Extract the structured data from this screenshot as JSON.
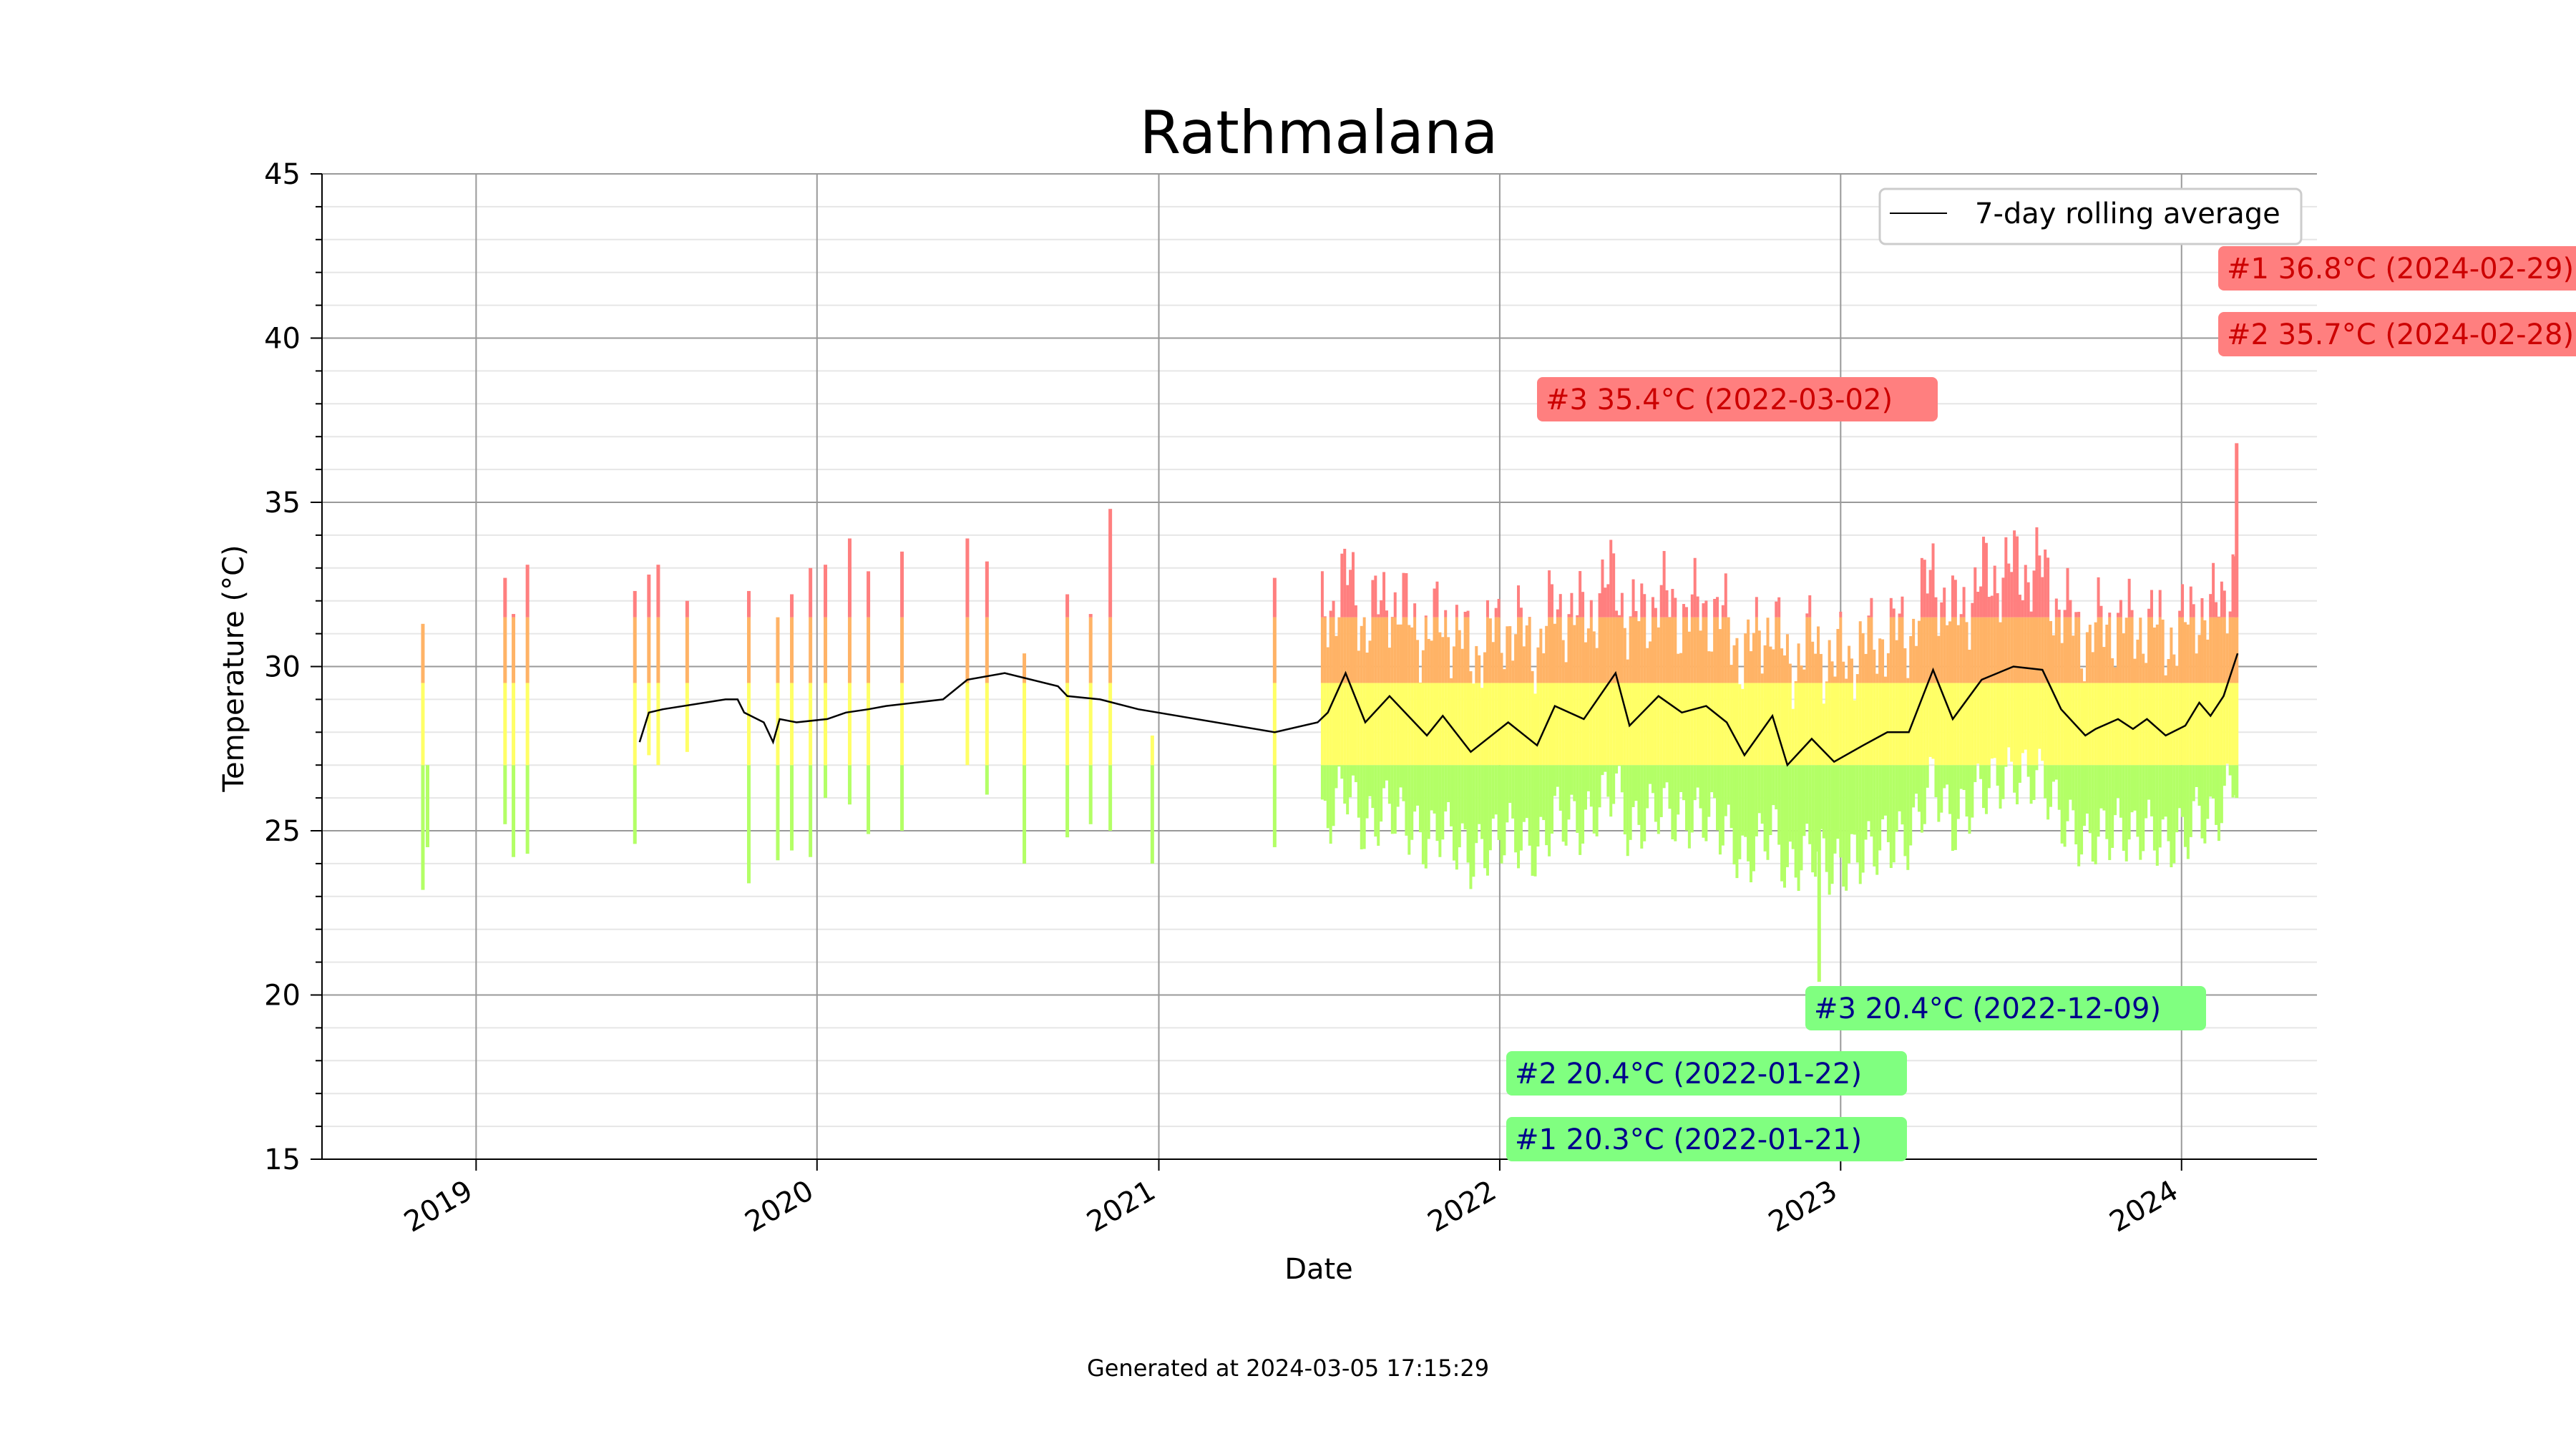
{
  "chart_data": {
    "type": "line",
    "title": "Rathmalana",
    "xlabel": "Date",
    "ylabel": "Temperature (°C)",
    "ylim": [
      15,
      45
    ],
    "xlim": [
      "2018-07-20",
      "2024-05-25"
    ],
    "y_ticks": [
      "15",
      "20",
      "25",
      "30",
      "35",
      "40",
      "45"
    ],
    "x_ticks": [
      {
        "date": "2019-01-01",
        "label": "2019"
      },
      {
        "date": "2020-01-01",
        "label": "2020"
      },
      {
        "date": "2021-01-01",
        "label": "2021"
      },
      {
        "date": "2022-01-01",
        "label": "2022"
      },
      {
        "date": "2023-01-01",
        "label": "2023"
      },
      {
        "date": "2024-01-01",
        "label": "2024"
      }
    ],
    "grid": true,
    "legend": {
      "placement": "top-right",
      "entries": [
        "7-day rolling average"
      ]
    },
    "series": [
      {
        "name": "7-day rolling average",
        "color": "#000000",
        "points": [
          [
            "2019-06-25",
            27.7
          ],
          [
            "2019-07-05",
            28.6
          ],
          [
            "2019-07-20",
            28.7
          ],
          [
            "2019-09-25",
            29.0
          ],
          [
            "2019-10-08",
            29.0
          ],
          [
            "2019-10-15",
            28.6
          ],
          [
            "2019-11-05",
            28.3
          ],
          [
            "2019-11-15",
            27.7
          ],
          [
            "2019-11-22",
            28.4
          ],
          [
            "2019-12-10",
            28.3
          ],
          [
            "2020-01-12",
            28.4
          ],
          [
            "2020-02-01",
            28.6
          ],
          [
            "2020-02-25",
            28.7
          ],
          [
            "2020-03-15",
            28.8
          ],
          [
            "2020-05-15",
            29.0
          ],
          [
            "2020-06-10",
            29.6
          ],
          [
            "2020-07-20",
            29.8
          ],
          [
            "2020-09-15",
            29.4
          ],
          [
            "2020-09-25",
            29.1
          ],
          [
            "2020-10-30",
            29.0
          ],
          [
            "2020-12-10",
            28.7
          ],
          [
            "2021-05-05",
            28.0
          ],
          [
            "2021-06-20",
            28.3
          ],
          [
            "2021-07-01",
            28.6
          ],
          [
            "2021-07-20",
            29.8
          ],
          [
            "2021-08-10",
            28.3
          ],
          [
            "2021-09-05",
            29.1
          ],
          [
            "2021-10-15",
            27.9
          ],
          [
            "2021-11-01",
            28.5
          ],
          [
            "2021-12-01",
            27.4
          ],
          [
            "2022-01-10",
            28.3
          ],
          [
            "2022-02-10",
            27.6
          ],
          [
            "2022-03-01",
            28.8
          ],
          [
            "2022-04-01",
            28.4
          ],
          [
            "2022-05-05",
            29.8
          ],
          [
            "2022-05-20",
            28.2
          ],
          [
            "2022-06-20",
            29.1
          ],
          [
            "2022-07-15",
            28.6
          ],
          [
            "2022-08-10",
            28.8
          ],
          [
            "2022-09-01",
            28.3
          ],
          [
            "2022-09-20",
            27.3
          ],
          [
            "2022-10-20",
            28.5
          ],
          [
            "2022-11-05",
            27.0
          ],
          [
            "2022-12-01",
            27.8
          ],
          [
            "2022-12-25",
            27.1
          ],
          [
            "2023-01-25",
            27.6
          ],
          [
            "2023-02-20",
            28.0
          ],
          [
            "2023-03-15",
            28.0
          ],
          [
            "2023-04-10",
            29.9
          ],
          [
            "2023-05-01",
            28.4
          ],
          [
            "2023-06-01",
            29.6
          ],
          [
            "2023-07-05",
            30.0
          ],
          [
            "2023-08-05",
            29.9
          ],
          [
            "2023-08-25",
            28.7
          ],
          [
            "2023-09-20",
            27.9
          ],
          [
            "2023-10-01",
            28.1
          ],
          [
            "2023-10-25",
            28.4
          ],
          [
            "2023-11-10",
            28.1
          ],
          [
            "2023-11-25",
            28.4
          ],
          [
            "2023-12-15",
            27.9
          ],
          [
            "2024-01-05",
            28.2
          ],
          [
            "2024-01-20",
            28.9
          ],
          [
            "2024-02-01",
            28.5
          ],
          [
            "2024-02-15",
            29.1
          ],
          [
            "2024-03-01",
            30.4
          ]
        ]
      }
    ],
    "daily_range_bars": [
      [
        "2018-11-05",
        23.2,
        31.3
      ],
      [
        "2018-11-10",
        24.5,
        27.0
      ],
      [
        "2019-02-01",
        25.2,
        32.7
      ],
      [
        "2019-02-10",
        24.2,
        31.6
      ],
      [
        "2019-02-25",
        24.3,
        33.1
      ],
      [
        "2019-06-20",
        24.6,
        32.3
      ],
      [
        "2019-07-05",
        27.3,
        32.8
      ],
      [
        "2019-07-15",
        27.0,
        33.1
      ],
      [
        "2019-08-15",
        27.4,
        32.0
      ],
      [
        "2019-10-20",
        23.4,
        32.3
      ],
      [
        "2019-11-20",
        24.1,
        31.5
      ],
      [
        "2019-12-05",
        24.4,
        32.2
      ],
      [
        "2019-12-25",
        24.2,
        33.0
      ],
      [
        "2020-01-10",
        26.0,
        33.1
      ],
      [
        "2020-02-05",
        25.8,
        33.9
      ],
      [
        "2020-02-25",
        24.9,
        32.9
      ],
      [
        "2020-04-01",
        25.0,
        33.5
      ],
      [
        "2020-06-10",
        27.0,
        33.9
      ],
      [
        "2020-07-01",
        26.1,
        33.2
      ],
      [
        "2020-08-10",
        24.0,
        30.4
      ],
      [
        "2020-09-25",
        24.8,
        32.2
      ],
      [
        "2020-10-20",
        25.2,
        31.6
      ],
      [
        "2020-11-10",
        25.0,
        34.8
      ],
      [
        "2020-12-25",
        24.0,
        27.9
      ],
      [
        "2021-05-05",
        24.5,
        32.7
      ],
      [
        "2022-12-09",
        20.4,
        29.0
      ],
      [
        "2024-02-29",
        26.0,
        36.8
      ]
    ],
    "annotations": {
      "max": [
        {
          "rank": "#1",
          "value": 36.8,
          "date": "2024-02-29",
          "label": "#1 36.8°C (2024-02-29)"
        },
        {
          "rank": "#2",
          "value": 35.7,
          "date": "2024-02-28",
          "label": "#2 35.7°C (2024-02-28)"
        },
        {
          "rank": "#3",
          "value": 35.4,
          "date": "2022-03-02",
          "label": "#3 35.4°C (2022-03-02)"
        }
      ],
      "min": [
        {
          "rank": "#1",
          "value": 20.3,
          "date": "2022-01-21",
          "label": "#1 20.3°C (2022-01-21)"
        },
        {
          "rank": "#2",
          "value": 20.4,
          "date": "2022-01-22",
          "label": "#2 20.4°C (2022-01-22)"
        },
        {
          "rank": "#3",
          "value": 20.4,
          "date": "2022-12-09",
          "label": "#3 20.4°C (2022-12-09)"
        }
      ]
    },
    "colors": {
      "hot": "#ff7f7f",
      "warm": "#ffb366",
      "mild": "#ffff66",
      "cool": "#b3ff66",
      "max_annotation_bg": "#ff7f7f",
      "max_annotation_text": "#cc0000",
      "min_annotation_bg": "#80ff80",
      "min_annotation_text": "#00008b"
    }
  },
  "footer": "Generated at 2024-03-05 17:15:29"
}
